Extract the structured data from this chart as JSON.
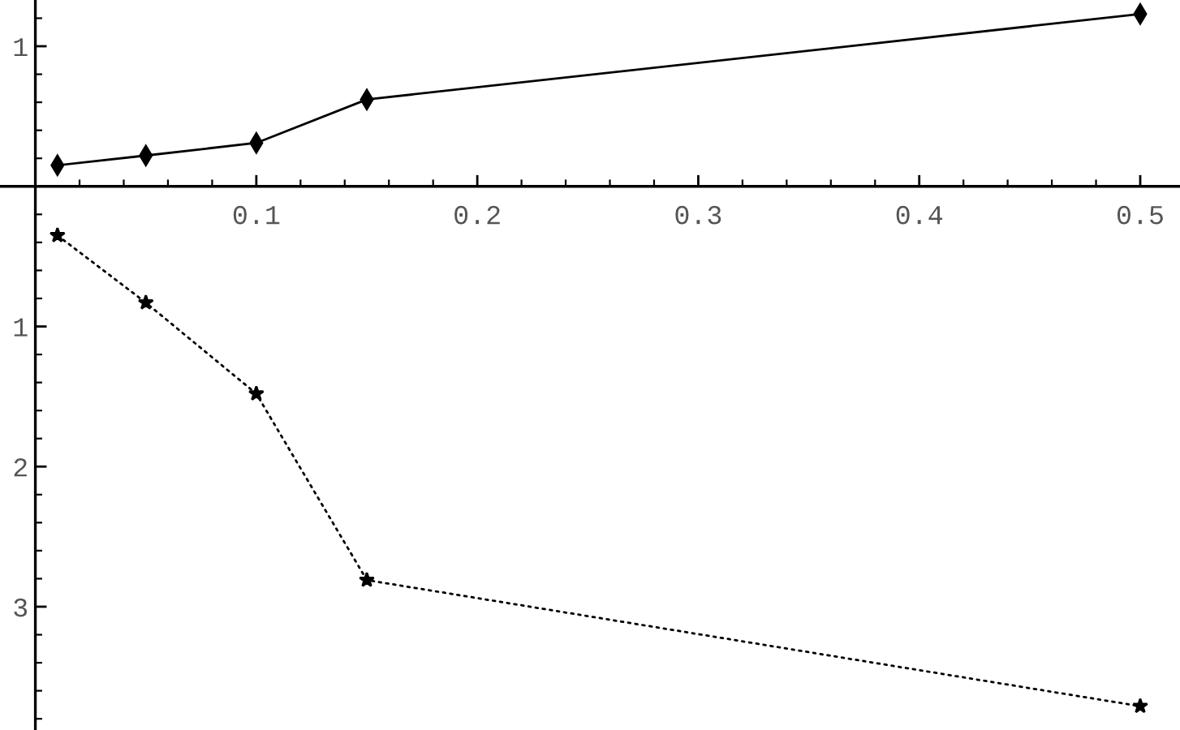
{
  "chart_data": {
    "type": "line",
    "x": [
      0.01,
      0.05,
      0.1,
      0.15,
      0.5
    ],
    "series": [
      {
        "color": "#000000",
        "values": [
          0.15,
          0.22,
          0.31,
          0.62,
          1.23
        ],
        "marker": "diamond",
        "line_style": "solid"
      },
      {
        "color": "#000000",
        "values": [
          -0.35,
          -0.83,
          -1.48,
          -2.81,
          -3.71
        ],
        "marker": "star",
        "line_style": "dotted"
      }
    ],
    "xlim": [
      -0.016,
      0.518
    ],
    "ylim": [
      -3.88,
      1.33
    ],
    "xticks": [
      0.1,
      0.2,
      0.3,
      0.4,
      0.5
    ],
    "yticks": [
      {
        "value": 1,
        "label": "1"
      },
      {
        "value": -1,
        "label": "1"
      },
      {
        "value": -2,
        "label": "2"
      },
      {
        "value": -3,
        "label": "3"
      }
    ]
  }
}
